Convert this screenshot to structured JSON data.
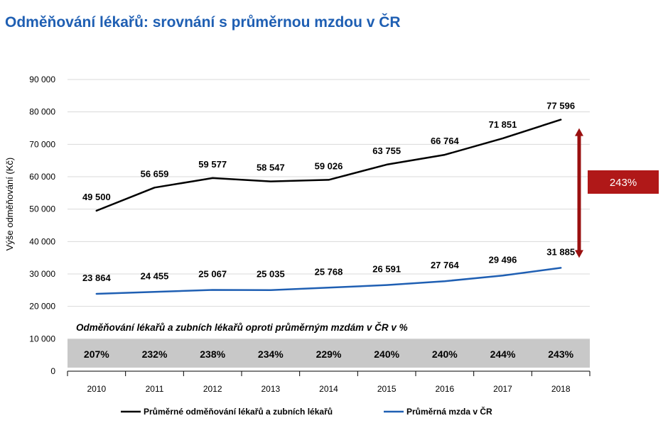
{
  "page": {
    "title": "Odměňování lékařů: srovnání s průměrnou mzdou v ČR"
  },
  "chart_data": {
    "type": "line",
    "title": "Odměňování lékařů: srovnání s průměrnou mzdou v ČR",
    "ylabel": "Výše odměňování (Kč)",
    "xlabel": "",
    "x": [
      "2010",
      "2011",
      "2012",
      "2013",
      "2014",
      "2015",
      "2016",
      "2017",
      "2018"
    ],
    "ylim": [
      0,
      90000
    ],
    "yticks": [
      0,
      10000,
      20000,
      30000,
      40000,
      50000,
      60000,
      70000,
      80000,
      90000
    ],
    "ytick_labels": [
      "0",
      "10 000",
      "20 000",
      "30 000",
      "40 000",
      "50 000",
      "60 000",
      "70 000",
      "80 000",
      "90 000"
    ],
    "grid": true,
    "legend_position": "bottom",
    "series": [
      {
        "name": "Průměrné odměňování lékařů a zubních lékařů",
        "color": "#000000",
        "values": [
          49500,
          56659,
          59577,
          58547,
          59026,
          63755,
          66764,
          71851,
          77596
        ],
        "labels": [
          "49 500",
          "56 659",
          "59 577",
          "58 547",
          "59 026",
          "63 755",
          "66 764",
          "71 851",
          "77 596"
        ]
      },
      {
        "name": "Průměrná mzda v ČR",
        "color": "#1f5fb3",
        "values": [
          23864,
          24455,
          25067,
          25035,
          25768,
          26591,
          27764,
          29496,
          31885
        ],
        "labels": [
          "23 864",
          "24 455",
          "25 067",
          "25 035",
          "25 768",
          "26 591",
          "27 764",
          "29 496",
          "31 885"
        ]
      }
    ],
    "ratio_band": {
      "caption": "Odměňování lékařů a zubních lékařů oproti průměrným mzdám v ČR v %",
      "values": [
        "207%",
        "232%",
        "238%",
        "234%",
        "229%",
        "240%",
        "240%",
        "244%",
        "243%"
      ],
      "color": "#c8c8c8"
    },
    "annotation": {
      "text": "243%",
      "box_color": "#b01818",
      "arrow_color": "#9a1010",
      "from_value": 31885,
      "to_value": 77596
    }
  }
}
